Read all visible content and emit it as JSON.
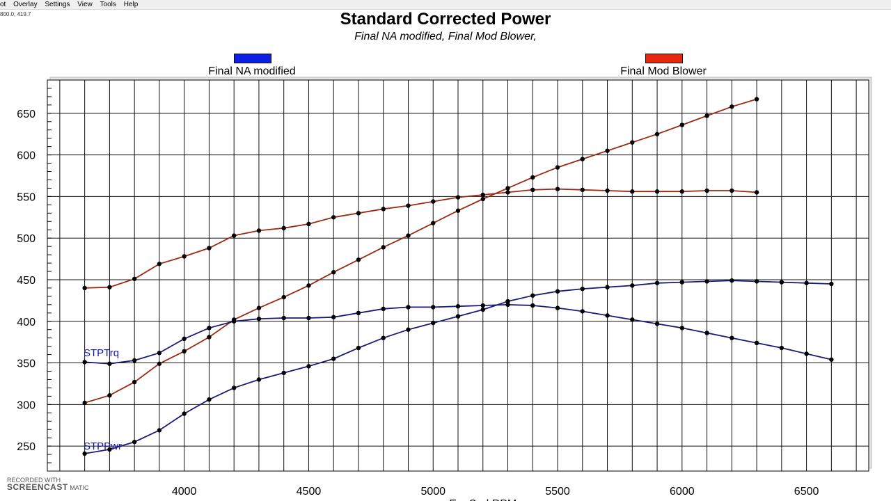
{
  "menu": {
    "items": [
      "ot",
      "Overlay",
      "Settings",
      "View",
      "Tools",
      "Help"
    ]
  },
  "coord_readout": "800.0, 419.7",
  "watermark": {
    "top": "RECORDED WITH",
    "brand": "SCREENCAST",
    "suffix": "MATIC"
  },
  "chart_data": {
    "type": "line",
    "title": "Standard Corrected Power",
    "subtitle": "Final NA modified, Final Mod Blower,",
    "xlabel": "EngSpd RPM",
    "ylabel": "",
    "xlim": [
      3450,
      6750
    ],
    "ylim": [
      220,
      690
    ],
    "x_ticks": [
      4000,
      4500,
      5000,
      5500,
      6000,
      6500
    ],
    "y_ticks": [
      250,
      300,
      350,
      400,
      450,
      500,
      550,
      600,
      650
    ],
    "grid": true,
    "legend": [
      {
        "name": "Final NA modified",
        "color": "#0b1ee6"
      },
      {
        "name": "Final Mod Blower",
        "color": "#e8280c"
      }
    ],
    "series_labels": [
      "STPTrq",
      "STPPwr"
    ],
    "series": [
      {
        "name": "Final Mod Blower STPTrq",
        "color": "#9a2a12",
        "x": [
          3600,
          3700,
          3800,
          3900,
          4000,
          4100,
          4200,
          4300,
          4400,
          4500,
          4600,
          4700,
          4800,
          4900,
          5000,
          5100,
          5200,
          5300,
          5400,
          5500,
          5600,
          5700,
          5800,
          5900,
          6000,
          6100,
          6200,
          6300
        ],
        "y": [
          440,
          441,
          451,
          469,
          478,
          488,
          503,
          509,
          512,
          517,
          525,
          530,
          535,
          539,
          544,
          549,
          552,
          555,
          558,
          559,
          558,
          557,
          556,
          556,
          556,
          557,
          557,
          555
        ]
      },
      {
        "name": "Final Mod Blower STPPwr",
        "color": "#9a2a12",
        "x": [
          3600,
          3700,
          3800,
          3900,
          4000,
          4100,
          4200,
          4300,
          4400,
          4500,
          4600,
          4700,
          4800,
          4900,
          5000,
          5100,
          5200,
          5300,
          5400,
          5500,
          5600,
          5700,
          5800,
          5900,
          6000,
          6100,
          6200,
          6300
        ],
        "y": [
          302,
          311,
          327,
          349,
          364,
          381,
          402,
          416,
          429,
          443,
          459,
          474,
          489,
          503,
          518,
          533,
          547,
          560,
          573,
          585,
          595,
          605,
          615,
          625,
          636,
          647,
          658,
          667
        ]
      },
      {
        "name": "Final NA modified STPTrq",
        "color": "#1a1a78",
        "x": [
          3600,
          3700,
          3800,
          3900,
          4000,
          4100,
          4200,
          4300,
          4400,
          4500,
          4600,
          4700,
          4800,
          4900,
          5000,
          5100,
          5200,
          5300,
          5400,
          5500,
          5600,
          5700,
          5800,
          5900,
          6000,
          6100,
          6200,
          6300,
          6400,
          6500,
          6600
        ],
        "y": [
          351,
          349,
          353,
          362,
          379,
          392,
          400,
          403,
          404,
          404,
          405,
          410,
          415,
          417,
          417,
          418,
          419,
          420,
          419,
          416,
          412,
          407,
          402,
          397,
          392,
          386,
          380,
          374,
          368,
          361,
          354
        ]
      },
      {
        "name": "Final NA modified STPPwr",
        "color": "#1a1a78",
        "x": [
          3600,
          3700,
          3800,
          3900,
          4000,
          4100,
          4200,
          4300,
          4400,
          4500,
          4600,
          4700,
          4800,
          4900,
          5000,
          5100,
          5200,
          5300,
          5400,
          5500,
          5600,
          5700,
          5800,
          5900,
          6000,
          6100,
          6200,
          6300,
          6400,
          6500,
          6600
        ],
        "y": [
          241,
          246,
          255,
          269,
          289,
          306,
          320,
          330,
          338,
          346,
          355,
          368,
          380,
          390,
          398,
          406,
          414,
          424,
          431,
          436,
          439,
          441,
          443,
          446,
          447,
          448,
          449,
          448,
          447,
          446,
          445
        ]
      }
    ]
  }
}
